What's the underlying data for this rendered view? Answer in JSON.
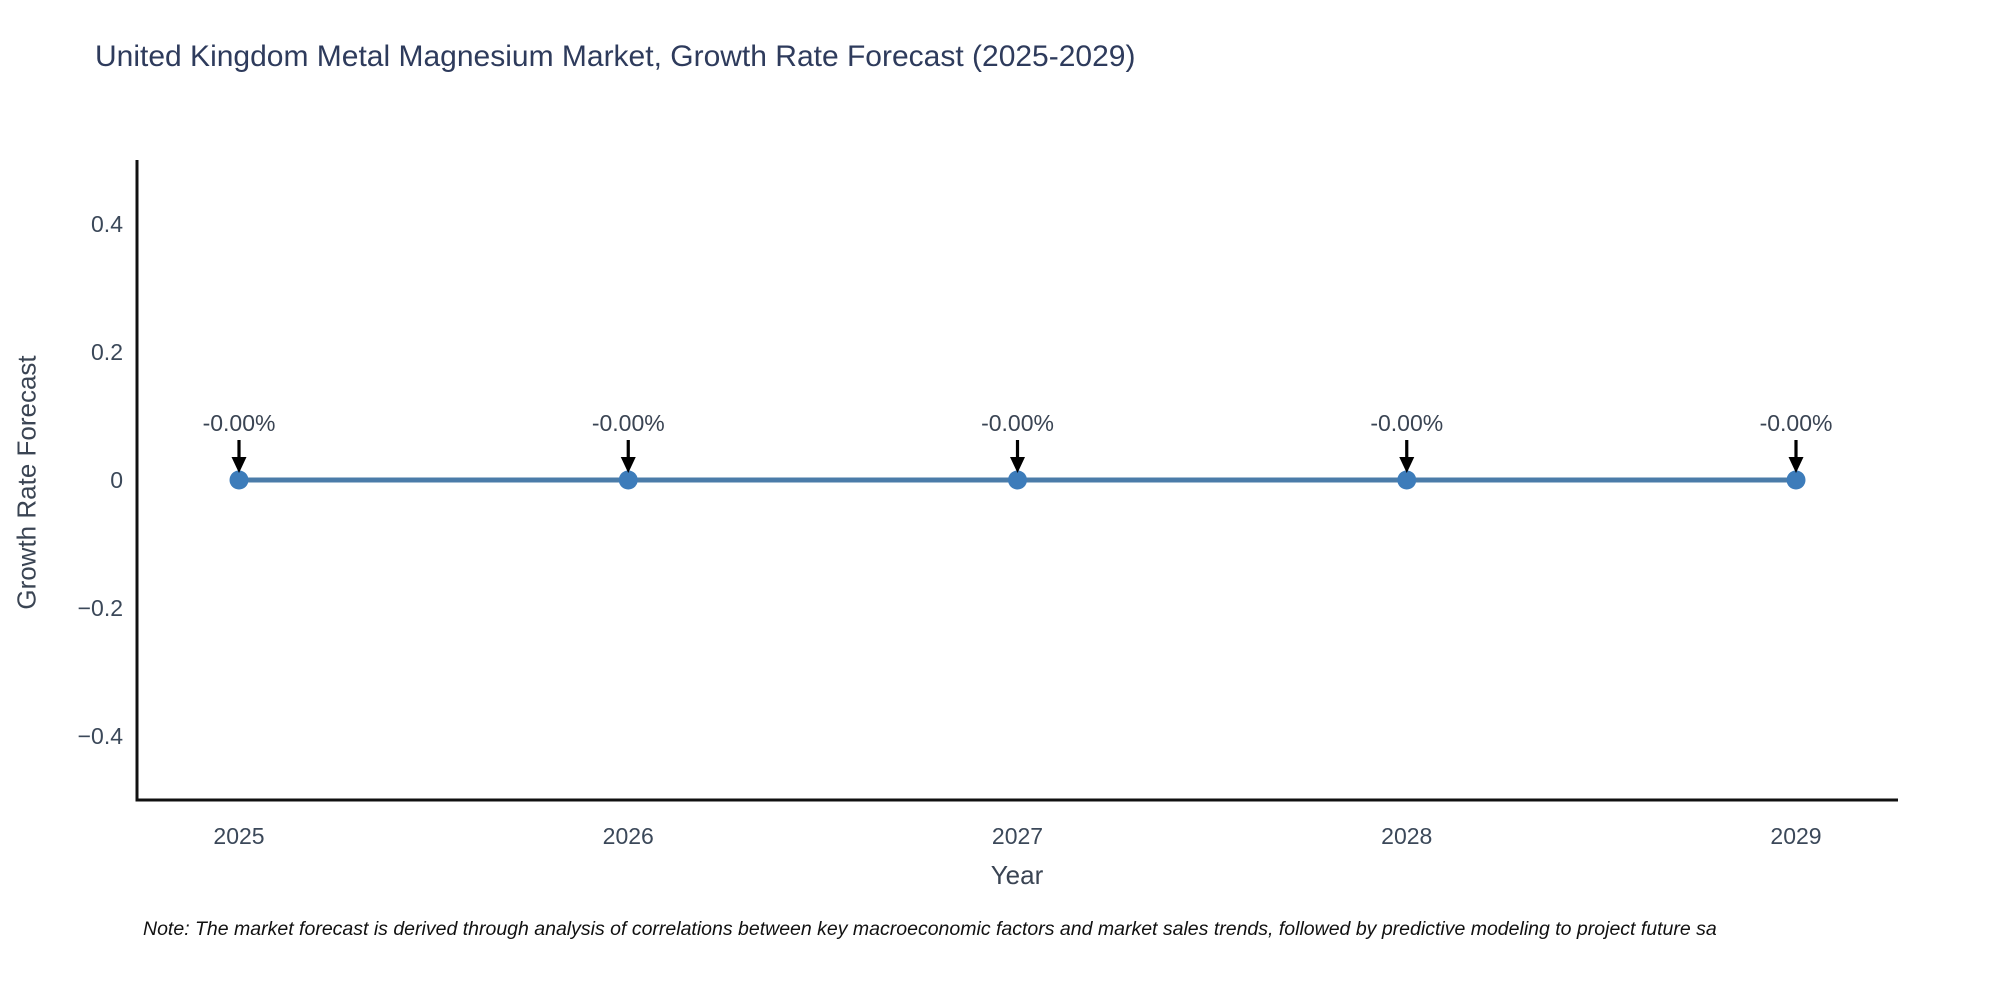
{
  "figure": {
    "title": "United Kingdom Metal Magnesium Market, Growth Rate Forecast (2025-2029)",
    "note": "Note: The market forecast is derived through analysis of correlations between key macroeconomic factors and market sales trends, followed by predictive modeling to project future sa"
  },
  "chart_data": {
    "type": "line",
    "title": "United Kingdom Metal Magnesium Market, Growth Rate Forecast (2025-2029)",
    "xlabel": "Year",
    "ylabel": "Growth Rate Forecast",
    "categories": [
      "2025",
      "2026",
      "2027",
      "2028",
      "2029"
    ],
    "series": [
      {
        "name": "Growth Rate Forecast",
        "values": [
          0,
          0,
          0,
          0,
          0
        ],
        "point_labels": [
          "-0.00%",
          "-0.00%",
          "-0.00%",
          "-0.00%",
          "-0.00%"
        ]
      }
    ],
    "ylim": [
      -0.5,
      0.5
    ],
    "yticks": [
      -0.4,
      -0.2,
      0,
      0.2,
      0.4
    ],
    "grid": false,
    "legend_visible": false,
    "colors": {
      "line": "#4b7ca9",
      "marker": "#3d7cba",
      "annotation_arrow": "#000000",
      "annotation_text": "#3a4453",
      "axis": "#111111",
      "tick_label": "#3b4859",
      "title": "#2e3b5c"
    }
  }
}
